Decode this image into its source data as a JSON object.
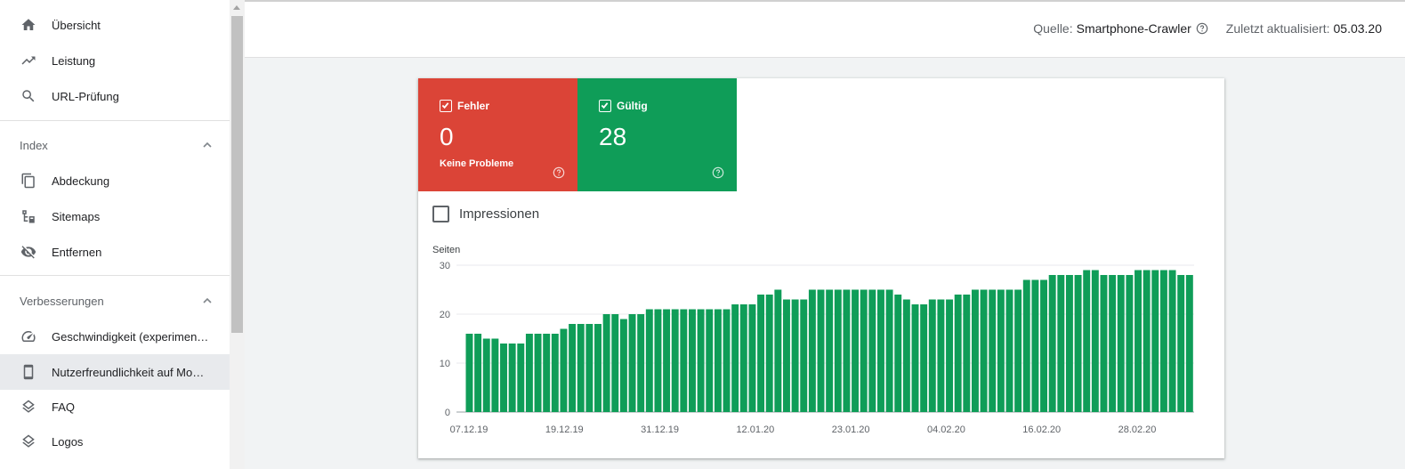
{
  "sidebar": {
    "items_top": [
      {
        "label": "Übersicht",
        "icon": "home-icon"
      },
      {
        "label": "Leistung",
        "icon": "trending-up-icon"
      },
      {
        "label": "URL-Prüfung",
        "icon": "search-icon"
      }
    ],
    "index": {
      "title": "Index",
      "items": [
        {
          "label": "Abdeckung",
          "icon": "copy-icon"
        },
        {
          "label": "Sitemaps",
          "icon": "sitemap-icon"
        },
        {
          "label": "Entfernen",
          "icon": "visibility-off-icon"
        }
      ]
    },
    "improvements": {
      "title": "Verbesserungen",
      "items": [
        {
          "label": "Geschwindigkeit (experimen…",
          "icon": "speed-icon"
        },
        {
          "label": "Nutzerfreundlichkeit auf Mo…",
          "icon": "smartphone-icon",
          "active": true
        },
        {
          "label": "FAQ",
          "icon": "layers-icon"
        },
        {
          "label": "Logos",
          "icon": "layers-icon"
        }
      ]
    }
  },
  "topbar": {
    "source_label": "Quelle:",
    "source_value": "Smartphone-Crawler",
    "updated_label": "Zuletzt aktualisiert:",
    "updated_value": "05.03.20"
  },
  "tiles": {
    "error": {
      "title": "Fehler",
      "count": "0",
      "subtitle": "Keine Probleme",
      "color": "#db4437"
    },
    "valid": {
      "title": "Gültig",
      "count": "28",
      "color": "#0f9d58"
    }
  },
  "impressions": {
    "label": "Impressionen"
  },
  "chart_data": {
    "type": "bar",
    "ylabel": "Seiten",
    "ylim": [
      0,
      30
    ],
    "yticks": [
      0,
      10,
      20,
      30
    ],
    "xtick_labels": [
      "07.12.19",
      "19.12.19",
      "31.12.19",
      "12.01.20",
      "23.01.20",
      "04.02.20",
      "16.02.20",
      "28.02.20"
    ],
    "bar_color": "#0f9d58",
    "values": [
      16,
      16,
      15,
      15,
      14,
      14,
      14,
      16,
      16,
      16,
      16,
      17,
      18,
      18,
      18,
      18,
      20,
      20,
      19,
      20,
      20,
      21,
      21,
      21,
      21,
      21,
      21,
      21,
      21,
      21,
      21,
      22,
      22,
      22,
      24,
      24,
      25,
      23,
      23,
      23,
      25,
      25,
      25,
      25,
      25,
      25,
      25,
      25,
      25,
      25,
      24,
      23,
      22,
      22,
      23,
      23,
      23,
      24,
      24,
      25,
      25,
      25,
      25,
      25,
      25,
      27,
      27,
      27,
      28,
      28,
      28,
      28,
      29,
      29,
      28,
      28,
      28,
      28,
      29,
      29,
      29,
      29,
      29,
      28,
      28
    ]
  }
}
